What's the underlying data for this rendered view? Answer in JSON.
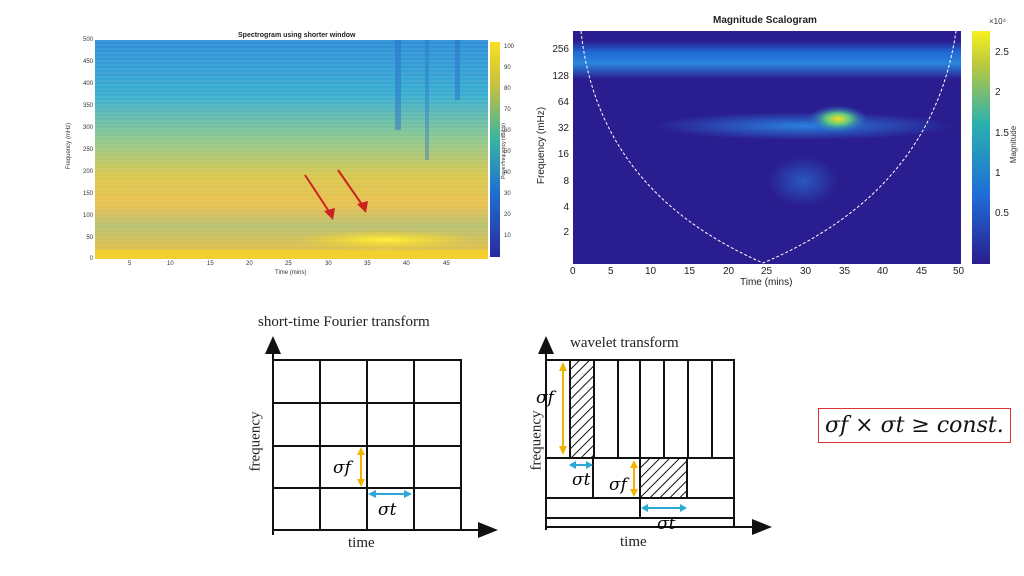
{
  "spectrogram": {
    "title": "Spectrogram using shorter window",
    "xlabel": "Time (mins)",
    "ylabel": "Frequency (mHz)",
    "colorbar_label": "Power/frequency (dB/Hz)",
    "yticks": [
      "500",
      "450",
      "400",
      "350",
      "300",
      "250",
      "200",
      "150",
      "100",
      "50",
      "0"
    ],
    "xticks": [
      "5",
      "10",
      "15",
      "20",
      "25",
      "30",
      "35",
      "40",
      "45"
    ],
    "cticks": [
      "100",
      "90",
      "80",
      "70",
      "60",
      "50",
      "40",
      "30",
      "20",
      "10"
    ],
    "colors": {
      "low": "#1f6fd0",
      "mid": "#39b5a0",
      "high": "#f5d020",
      "arrow": "#cc2222"
    }
  },
  "scalogram": {
    "title": "Magnitude Scalogram",
    "xlabel": "Time (mins)",
    "ylabel": "Frequency (mHz)",
    "colorbar_label": "Magnitude",
    "colorbar_exponent": "×10⁴",
    "yticks": [
      "256",
      "128",
      "64",
      "32",
      "16",
      "8",
      "4",
      "2"
    ],
    "xticks": [
      "0",
      "5",
      "10",
      "15",
      "20",
      "25",
      "30",
      "35",
      "40",
      "45",
      "50"
    ],
    "cticks": [
      "2.5",
      "2",
      "1.5",
      "1",
      "0.5"
    ],
    "colors": {
      "bg": "#2a1d8f",
      "band": "#1a64d8",
      "hot": "#f5e020",
      "coi": "#ffffff"
    }
  },
  "stft": {
    "title": "short-time Fourier transform",
    "xlabel": "time",
    "ylabel": "frequency",
    "sigma_f": "σf",
    "sigma_t": "σt"
  },
  "wavelet": {
    "title": "wavelet transform",
    "xlabel": "time",
    "ylabel": "frequency",
    "sigma_f_top": "σf",
    "sigma_t_top": "σt",
    "sigma_f_mid": "σf",
    "sigma_t_bottom": "σt"
  },
  "formula": "σf × σt ≥ const.",
  "accent": {
    "yellow": "#f0b400",
    "cyan": "#2aa8d8"
  }
}
